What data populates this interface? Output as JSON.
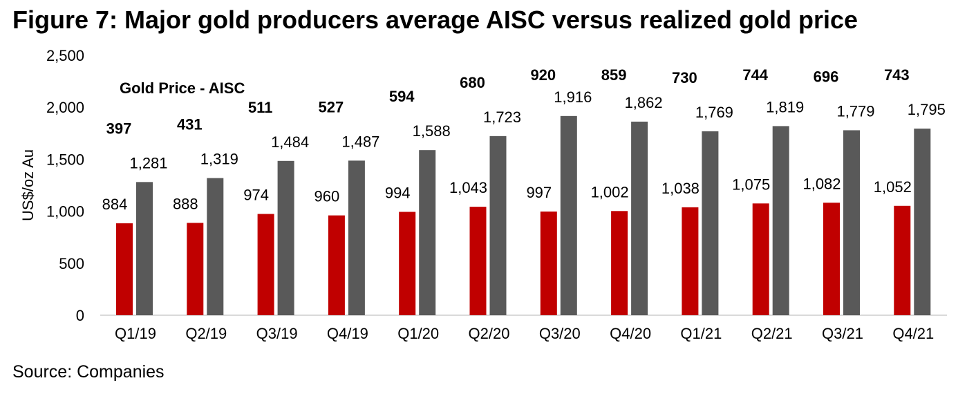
{
  "title": "Figure 7: Major gold producers average AISC versus realized gold price",
  "source": "Source: Companies",
  "chart_data": {
    "type": "bar",
    "title": "Figure 7: Major gold producers average AISC versus realized gold price",
    "ylabel": "US$/oz Au",
    "xlabel": "",
    "ylim": [
      0,
      2500
    ],
    "yticks": [
      "0",
      "500",
      "1,000",
      "1,500",
      "2,000",
      "2,500"
    ],
    "ytick_values": [
      0,
      500,
      1000,
      1500,
      2000,
      2500
    ],
    "categories": [
      "Q1/19",
      "Q2/19",
      "Q3/19",
      "Q4/19",
      "Q1/20",
      "Q2/20",
      "Q3/20",
      "Q4/20",
      "Q1/21",
      "Q2/21",
      "Q3/21",
      "Q4/21"
    ],
    "series": [
      {
        "name": "AISC",
        "color": "#C00000",
        "values": [
          884,
          888,
          974,
          960,
          994,
          1043,
          997,
          1002,
          1038,
          1075,
          1082,
          1052
        ],
        "labels": [
          "884",
          "888",
          "974",
          "960",
          "994",
          "1,043",
          "997",
          "1,002",
          "1,038",
          "1,075",
          "1,082",
          "1,052"
        ]
      },
      {
        "name": "Gold Price",
        "color": "#595959",
        "values": [
          1281,
          1319,
          1484,
          1487,
          1588,
          1723,
          1916,
          1862,
          1769,
          1819,
          1779,
          1795
        ],
        "labels": [
          "1,281",
          "1,319",
          "1,484",
          "1,487",
          "1,588",
          "1,723",
          "1,916",
          "1,862",
          "1,769",
          "1,819",
          "1,779",
          "1,795"
        ]
      }
    ],
    "annotation_title": "Gold Price - AISC",
    "margins": {
      "values": [
        397,
        431,
        511,
        527,
        594,
        680,
        920,
        859,
        730,
        744,
        696,
        743
      ],
      "labels": [
        "397",
        "431",
        "511",
        "527",
        "594",
        "680",
        "920",
        "859",
        "730",
        "744",
        "696",
        "743"
      ]
    },
    "grid": false
  }
}
